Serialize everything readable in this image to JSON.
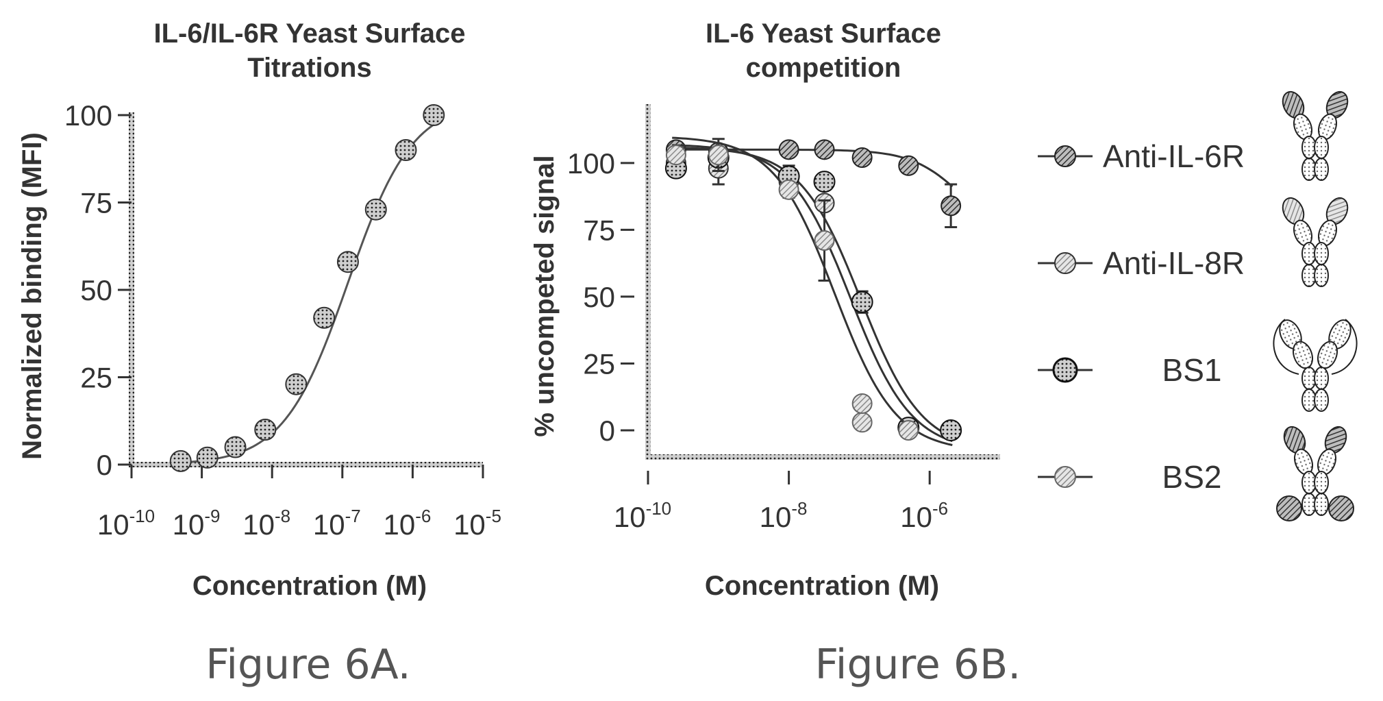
{
  "figure": {
    "captions": [
      "Figure 6A.",
      "Figure 6B."
    ]
  },
  "colors": {
    "ink": "#333333",
    "caption": "#555555",
    "series_A": "#555555",
    "series_anti_il6r": "#6a6a6a",
    "series_anti_il8r": "#8a8a8a",
    "series_bs1": "#2e2e2e",
    "series_bs2": "#a5a5a5"
  },
  "chart_data": [
    {
      "type": "scatter",
      "title": [
        "IL-6/IL-6R Yeast Surface",
        "Titrations"
      ],
      "xlabel": "Concentration (M)",
      "ylabel": "Normalized binding (MFI)",
      "x_scale": "log",
      "xlim": [
        1e-10,
        1e-05
      ],
      "ylim": [
        0,
        100
      ],
      "x_ticks": [
        {
          "base": "10",
          "exp": "-10"
        },
        {
          "base": "10",
          "exp": "-9"
        },
        {
          "base": "10",
          "exp": "-8"
        },
        {
          "base": "10",
          "exp": "-7"
        },
        {
          "base": "10",
          "exp": "-6"
        },
        {
          "base": "10",
          "exp": "-5"
        }
      ],
      "y_ticks": [
        "0",
        "25",
        "50",
        "75",
        "100"
      ],
      "series": [
        {
          "points": [
            {
              "x": 5e-10,
              "y": 1
            },
            {
              "x": 1.2e-09,
              "y": 2
            },
            {
              "x": 3e-09,
              "y": 5
            },
            {
              "x": 8e-09,
              "y": 10
            },
            {
              "x": 2.2e-08,
              "y": 23
            },
            {
              "x": 5.5e-08,
              "y": 42
            },
            {
              "x": 1.2e-07,
              "y": 58
            },
            {
              "x": 3e-07,
              "y": 73
            },
            {
              "x": 8e-07,
              "y": 90
            },
            {
              "x": 2e-06,
              "y": 100
            }
          ],
          "fit": {
            "bottom": 0,
            "top": 104,
            "ec50": 1.2e-07,
            "hill": 0.95
          }
        }
      ]
    },
    {
      "type": "scatter",
      "title": [
        "IL-6 Yeast Surface",
        "competition"
      ],
      "xlabel": "Concentration (M)",
      "ylabel": "% uncompeted signal",
      "x_scale": "log",
      "xlim": [
        1e-10,
        1e-05
      ],
      "ylim": [
        -10,
        122
      ],
      "x_ticks": [
        {
          "base": "10",
          "exp": "-10"
        },
        {
          "base": "10",
          "exp": "-8"
        },
        {
          "base": "10",
          "exp": "-6"
        }
      ],
      "y_ticks": [
        "0",
        "25",
        "50",
        "75",
        "100"
      ],
      "series": [
        {
          "name": "Anti-IL-6R",
          "points": [
            {
              "x": 2.5e-10,
              "y": 105
            },
            {
              "x": 1e-09,
              "y": 104
            },
            {
              "x": 1e-08,
              "y": 105
            },
            {
              "x": 3.2e-08,
              "y": 105
            },
            {
              "x": 1.1e-07,
              "y": 102
            },
            {
              "x": 5e-07,
              "y": 99
            },
            {
              "x": 2e-06,
              "y": 84,
              "err": 8
            }
          ],
          "fit": {
            "bottom": 70,
            "top": 105,
            "ic50": 3e-06,
            "hill": 1.2
          }
        },
        {
          "name": "Anti-IL-8R",
          "points": [
            {
              "x": 2.5e-10,
              "y": 100
            },
            {
              "x": 1e-09,
              "y": 98,
              "err": 6
            },
            {
              "x": 1e-08,
              "y": 93,
              "err": 6
            },
            {
              "x": 3.2e-08,
              "y": 85
            },
            {
              "x": 1.1e-07,
              "y": 48
            },
            {
              "x": 5e-07,
              "y": 1
            },
            {
              "x": 2e-06,
              "y": 0
            }
          ],
          "fit": {
            "bottom": -8,
            "top": 106,
            "ic50": 1.05e-07,
            "hill": 1.0
          }
        },
        {
          "name": "BS1",
          "points": [
            {
              "x": 2.5e-10,
              "y": 98
            },
            {
              "x": 1e-09,
              "y": 102
            },
            {
              "x": 1e-08,
              "y": 95
            },
            {
              "x": 3.2e-08,
              "y": 93
            },
            {
              "x": 1.1e-07,
              "y": 48,
              "err": 4
            },
            {
              "x": 5e-07,
              "y": 1
            },
            {
              "x": 2e-06,
              "y": 0
            }
          ],
          "fit": {
            "bottom": -8,
            "top": 107,
            "ic50": 7.5e-08,
            "hill": 1.0
          }
        },
        {
          "name": "BS2",
          "points": [
            {
              "x": 2.5e-10,
              "y": 103
            },
            {
              "x": 1e-09,
              "y": 103,
              "err": 6
            },
            {
              "x": 1e-08,
              "y": 90
            },
            {
              "x": 3.2e-08,
              "y": 71,
              "err": 15
            },
            {
              "x": 1.1e-07,
              "y": 3
            },
            {
              "x": 1.1e-07,
              "y": 10
            },
            {
              "x": 5e-07,
              "y": 0
            }
          ],
          "fit": {
            "bottom": -8,
            "top": 110,
            "ic50": 4.5e-08,
            "hill": 1.0
          }
        }
      ],
      "legend": {
        "position": "right",
        "entries": [
          "Anti-IL-6R",
          "Anti-IL-8R",
          "BS1",
          "BS2"
        ]
      }
    }
  ]
}
